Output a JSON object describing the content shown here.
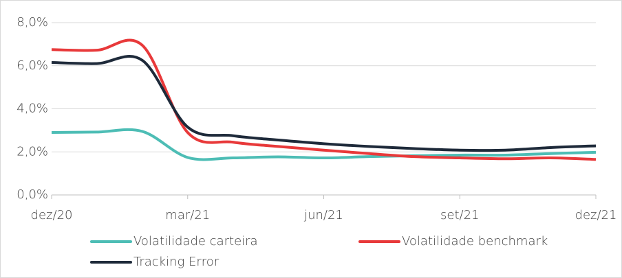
{
  "chart_data": {
    "type": "line",
    "categories": [
      "dez/20",
      null,
      null,
      "mar/21",
      null,
      null,
      "jun/21",
      null,
      null,
      "set/21",
      null,
      null,
      "dez/21"
    ],
    "series": [
      {
        "name": "Volatilidade carteira",
        "color": "#4dbdb5",
        "values": [
          2.9,
          2.92,
          2.95,
          1.74,
          1.72,
          1.77,
          1.72,
          1.78,
          1.82,
          1.85,
          1.85,
          1.92,
          1.98
        ]
      },
      {
        "name": "Volatilidade benchmark",
        "color": "#e8393a",
        "values": [
          6.75,
          6.72,
          6.95,
          2.9,
          2.45,
          2.25,
          2.08,
          1.92,
          1.78,
          1.72,
          1.68,
          1.72,
          1.65
        ]
      },
      {
        "name": "Tracking Error",
        "color": "#1e2a3a",
        "values": [
          6.15,
          6.1,
          6.25,
          3.15,
          2.75,
          2.55,
          2.38,
          2.25,
          2.15,
          2.08,
          2.08,
          2.2,
          2.28
        ]
      }
    ],
    "ylim": [
      0,
      8
    ],
    "yticks": [
      {
        "value": 0,
        "label": "0,0%"
      },
      {
        "value": 2,
        "label": "2,0%"
      },
      {
        "value": 4,
        "label": "4,0%"
      },
      {
        "value": 6,
        "label": "6,0%"
      },
      {
        "value": 8,
        "label": "8,0%"
      }
    ],
    "grid": true,
    "legend": "bottom"
  }
}
